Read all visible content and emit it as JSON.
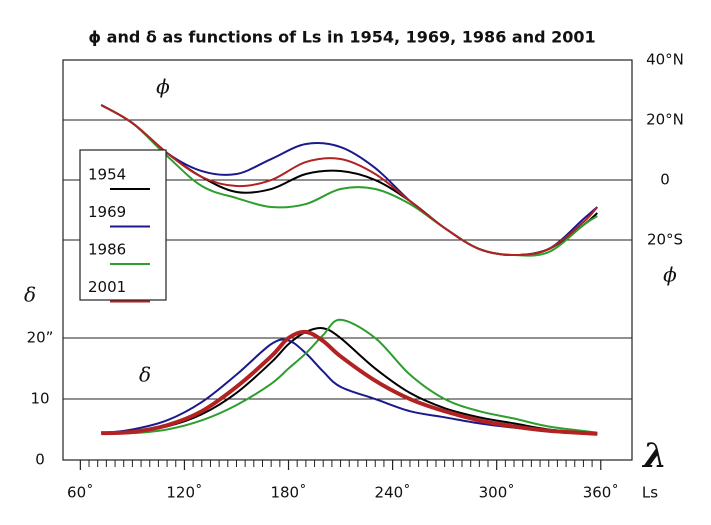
{
  "chart_data": [
    {
      "type": "line",
      "title": "ϕ and δ as functions of Ls in 1954, 1969, 1986 and 2001",
      "annotation": "ϕ",
      "y2label": "ϕ",
      "xlim": [
        50,
        378
      ],
      "y2lim": [
        -93.3,
        40
      ],
      "y2ticks": [
        {
          "value": 40,
          "label": "40°N"
        },
        {
          "value": 20,
          "label": "20°N"
        },
        0,
        {
          "value": -20,
          "label": "20°S"
        }
      ],
      "grid": true,
      "x": [
        72,
        90,
        110,
        130,
        150,
        170,
        190,
        210,
        230,
        250,
        270,
        290,
        310,
        330,
        350,
        358
      ],
      "series": [
        {
          "name": "1954",
          "color": "#000000",
          "axis": "y2",
          "values": [
            25,
            19,
            9,
            1,
            -4,
            -3,
            2,
            3,
            0,
            -7,
            -16,
            -23,
            -25,
            -23,
            -15,
            -11
          ]
        },
        {
          "name": "1969",
          "color": "#1a1a8c",
          "axis": "y2",
          "values": [
            25,
            19,
            9,
            3,
            2,
            7,
            12,
            11,
            4,
            -7,
            -16,
            -23,
            -25,
            -23,
            -13,
            -9
          ]
        },
        {
          "name": "1986",
          "color": "#2e9e2e",
          "axis": "y2",
          "values": [
            25,
            19,
            8,
            -2,
            -6,
            -9,
            -8,
            -3,
            -3,
            -8,
            -16,
            -23,
            -25,
            -24,
            -15,
            -12
          ]
        },
        {
          "name": "2001",
          "color": "#b22222",
          "axis": "y2",
          "values": [
            25,
            19,
            9,
            1,
            -2,
            0,
            6,
            7,
            2,
            -7,
            -16,
            -23,
            -25,
            -23,
            -14,
            -9
          ]
        }
      ]
    },
    {
      "type": "line",
      "annotation": "δ",
      "ylabel": "δ",
      "xlabel": "Ls",
      "xsymbol": "λ",
      "xlim": [
        50,
        378
      ],
      "ylim": [
        0,
        65.6
      ],
      "yticks": [
        0,
        10,
        {
          "value": 20,
          "label": "20”"
        }
      ],
      "xticks": [
        {
          "value": 60,
          "label": "60˚"
        },
        {
          "value": 120,
          "label": "120˚"
        },
        {
          "value": 180,
          "label": "180˚"
        },
        {
          "value": 240,
          "label": "240˚"
        },
        {
          "value": 300,
          "label": "300˚"
        },
        {
          "value": 360,
          "label": "360˚"
        }
      ],
      "xminorticks": [
        65,
        70,
        75,
        80,
        85,
        90,
        95,
        100,
        105,
        110,
        115,
        125,
        130,
        135,
        140,
        145,
        150,
        155,
        160,
        165,
        170,
        175,
        185,
        190,
        195,
        200,
        205,
        210,
        215,
        220,
        225,
        230,
        235,
        245,
        250,
        255,
        260,
        265,
        270,
        275,
        280,
        285,
        290,
        295,
        305,
        310,
        315,
        320,
        325,
        330,
        335,
        340,
        345,
        350,
        355
      ],
      "grid": true,
      "x": [
        72,
        90,
        110,
        130,
        150,
        170,
        180,
        190,
        200,
        210,
        230,
        250,
        270,
        290,
        310,
        330,
        358
      ],
      "series": [
        {
          "color": "#000000",
          "values": [
            4.4,
            4.6,
            5.5,
            7.5,
            11,
            16,
            19,
            21,
            21.6,
            20,
            15,
            11,
            8.5,
            7,
            6,
            5,
            4.3
          ]
        },
        {
          "color": "#1a1a8c",
          "values": [
            4.4,
            5,
            6.5,
            9.5,
            14,
            19,
            19.6,
            17.5,
            14.5,
            12,
            10,
            8,
            7,
            6,
            5.3,
            4.8,
            4.3
          ]
        },
        {
          "color": "#2e9e2e",
          "values": [
            4.4,
            4.4,
            5,
            6.5,
            9,
            12.5,
            15,
            17.5,
            20.5,
            23,
            20,
            14,
            10,
            8,
            6.8,
            5.5,
            4.5
          ]
        },
        {
          "color": "#b22222",
          "width": 4,
          "values": [
            4.4,
            4.6,
            5.7,
            8,
            12,
            17,
            20,
            21,
            19.5,
            17,
            13,
            10,
            8,
            6.5,
            5.5,
            4.8,
            4.3
          ]
        }
      ]
    }
  ]
}
